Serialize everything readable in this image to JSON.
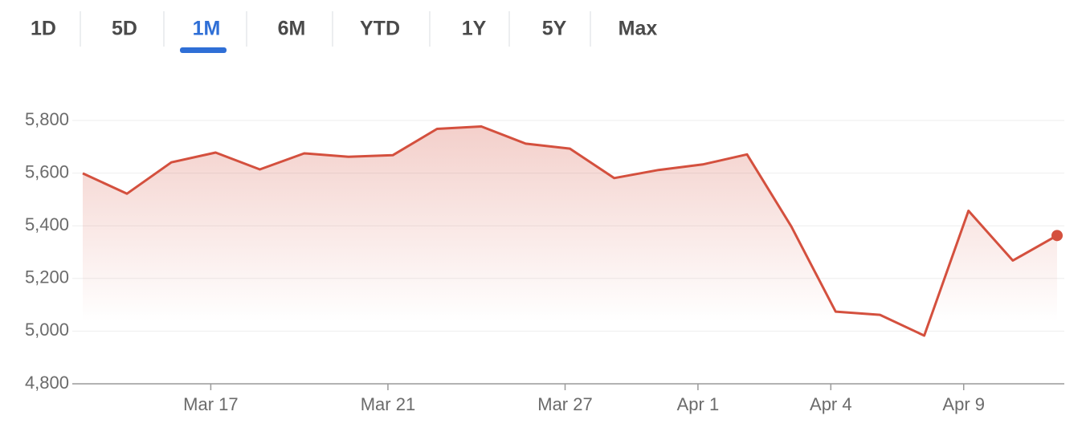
{
  "tabs": {
    "labels": [
      "1D",
      "5D",
      "1M",
      "6M",
      "YTD",
      "1Y",
      "5Y",
      "Max"
    ],
    "selected": 2
  },
  "chart_data": {
    "type": "line",
    "categories": [
      null,
      null,
      null,
      "Mar 17",
      null,
      null,
      null,
      "Mar 21",
      null,
      null,
      null,
      "Mar 27",
      null,
      null,
      "Apr 1",
      null,
      null,
      "Apr 4",
      null,
      null,
      "Apr 9",
      null,
      null
    ],
    "values": [
      5599,
      5522,
      5641,
      5678,
      5614,
      5675,
      5662,
      5668,
      5768,
      5777,
      5712,
      5693,
      5581,
      5612,
      5633,
      5671,
      5397,
      5074,
      5062,
      4983,
      5457,
      5268,
      5363
    ],
    "color": "#d4503e",
    "ylim": [
      4800,
      5800
    ],
    "yticks": [
      {
        "value": 4800,
        "label": "4,800"
      },
      {
        "value": 5000,
        "label": "5,000"
      },
      {
        "value": 5200,
        "label": "5,200"
      },
      {
        "value": 5400,
        "label": "5,400"
      },
      {
        "value": 5600,
        "label": "5,600"
      },
      {
        "value": 5800,
        "label": "5,800"
      }
    ],
    "grid": true
  }
}
